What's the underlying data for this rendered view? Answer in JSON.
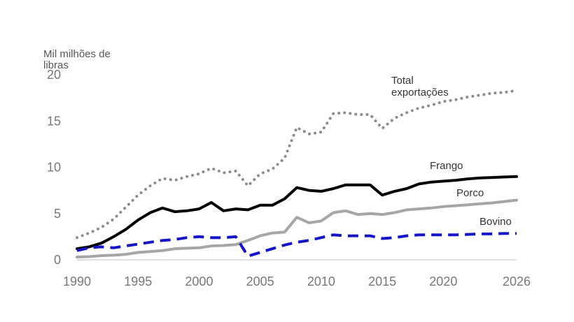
{
  "chart_data": {
    "type": "line",
    "ylabel": "Mil milhões de libras",
    "ylabel_lines": [
      "Mil milhões de",
      "libras"
    ],
    "xlim": [
      1990,
      2026
    ],
    "ylim": [
      0,
      20
    ],
    "xticks": [
      "1990",
      "1995",
      "2000",
      "2005",
      "2010",
      "2015",
      "2020",
      "2026"
    ],
    "yticks": [
      "0",
      "5",
      "10",
      "15",
      "20"
    ],
    "grid": false,
    "x": [
      1990,
      1991,
      1992,
      1993,
      1994,
      1995,
      1996,
      1997,
      1998,
      1999,
      2000,
      2001,
      2002,
      2003,
      2004,
      2005,
      2006,
      2007,
      2008,
      2009,
      2010,
      2011,
      2012,
      2013,
      2014,
      2015,
      2016,
      2017,
      2018,
      2019,
      2020,
      2021,
      2022,
      2023,
      2024,
      2025,
      2026
    ],
    "series": [
      {
        "name": "Total exportações",
        "label_lines": [
          "Total",
          "exportações"
        ],
        "color": "#8c8c8c",
        "style": "dotted",
        "values": [
          2.4,
          2.9,
          3.5,
          4.4,
          5.7,
          7.0,
          8.0,
          8.8,
          8.6,
          9.0,
          9.3,
          9.9,
          9.4,
          9.6,
          8.0,
          9.3,
          9.8,
          11.0,
          14.3,
          13.6,
          13.8,
          15.8,
          15.9,
          15.7,
          15.7,
          14.2,
          15.3,
          15.9,
          16.4,
          16.7,
          17.1,
          17.3,
          17.6,
          17.8,
          18.0,
          18.1,
          18.3
        ]
      },
      {
        "name": "Frango",
        "label_lines": [
          "Frango"
        ],
        "color": "#000000",
        "style": "solid",
        "values": [
          1.2,
          1.4,
          1.8,
          2.5,
          3.3,
          4.3,
          5.1,
          5.6,
          5.2,
          5.3,
          5.5,
          6.2,
          5.3,
          5.5,
          5.4,
          5.9,
          5.9,
          6.6,
          7.8,
          7.5,
          7.4,
          7.7,
          8.1,
          8.1,
          8.1,
          7.0,
          7.4,
          7.7,
          8.2,
          8.4,
          8.5,
          8.6,
          8.75,
          8.85,
          8.9,
          8.95,
          9.0
        ]
      },
      {
        "name": "Porco",
        "label_lines": [
          "Porco"
        ],
        "color": "#a6a6a6",
        "style": "solid",
        "values": [
          0.3,
          0.35,
          0.45,
          0.5,
          0.6,
          0.8,
          0.9,
          1.0,
          1.2,
          1.25,
          1.3,
          1.5,
          1.55,
          1.65,
          2.1,
          2.6,
          2.9,
          3.0,
          4.6,
          4.0,
          4.2,
          5.1,
          5.3,
          4.9,
          5.0,
          4.9,
          5.1,
          5.4,
          5.5,
          5.6,
          5.75,
          5.85,
          5.95,
          6.05,
          6.15,
          6.3,
          6.45
        ]
      },
      {
        "name": "Bovino",
        "label_lines": [
          "Bovino"
        ],
        "color": "#1414c8",
        "style": "dashed",
        "values": [
          1.0,
          1.3,
          1.4,
          1.3,
          1.5,
          1.7,
          1.9,
          2.1,
          2.2,
          2.4,
          2.5,
          2.4,
          2.4,
          2.5,
          0.4,
          0.8,
          1.2,
          1.6,
          1.9,
          2.1,
          2.4,
          2.7,
          2.6,
          2.6,
          2.6,
          2.3,
          2.4,
          2.6,
          2.7,
          2.7,
          2.7,
          2.7,
          2.75,
          2.8,
          2.8,
          2.85,
          2.85
        ]
      }
    ]
  }
}
